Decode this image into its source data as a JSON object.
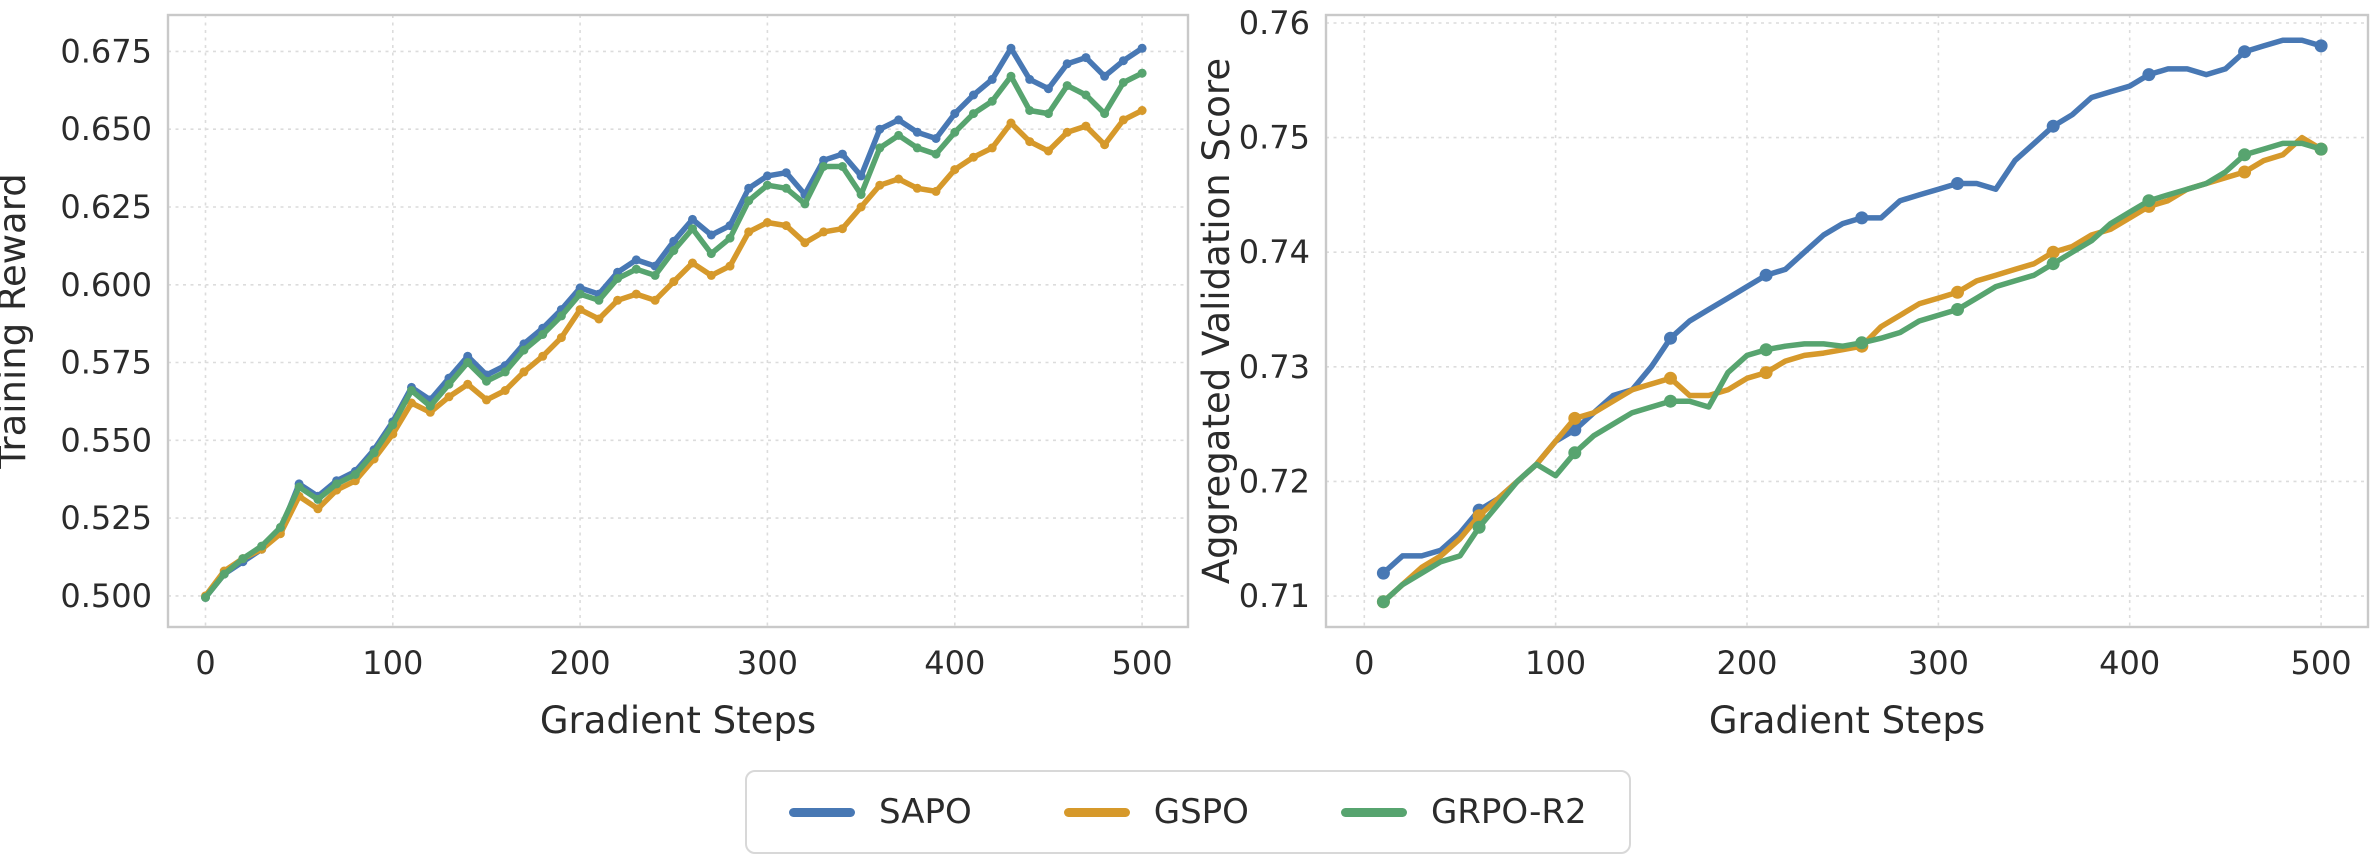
{
  "figure": {
    "background": "#ffffff"
  },
  "colors": {
    "sapo": "#4878B4",
    "gspo": "#D6992B",
    "grpo_r2": "#57A46F",
    "grid": "#dcdcdc",
    "spine": "#c9c9c9",
    "text": "#2b2b2b"
  },
  "legend": {
    "position": "bottom-center",
    "items": [
      {
        "label": "SAPO",
        "color": "#4878B4"
      },
      {
        "label": "GSPO",
        "color": "#D6992B"
      },
      {
        "label": "GRPO-R2",
        "color": "#57A46F"
      }
    ]
  },
  "chart_data": [
    {
      "type": "line",
      "title": "",
      "xlabel": "Gradient Steps",
      "ylabel": "Training Reward",
      "xlim": [
        -20,
        524.5
      ],
      "ylim": [
        0.49,
        0.6867
      ],
      "xticks": [
        0,
        100,
        200,
        300,
        400,
        500
      ],
      "yticks": [
        0.5,
        0.525,
        0.55,
        0.575,
        0.6,
        0.625,
        0.65,
        0.675
      ],
      "ytick_decimals": 3,
      "grid": true,
      "line_width": 5.5,
      "marker_radius": 4.5,
      "marker_step": 10,
      "x": [
        0,
        10,
        20,
        30,
        40,
        50,
        60,
        70,
        80,
        90,
        100,
        110,
        120,
        130,
        140,
        150,
        160,
        170,
        180,
        190,
        200,
        210,
        220,
        230,
        240,
        250,
        260,
        270,
        280,
        290,
        300,
        310,
        320,
        330,
        340,
        350,
        360,
        370,
        380,
        390,
        400,
        410,
        420,
        430,
        440,
        450,
        460,
        470,
        480,
        490,
        500
      ],
      "series": [
        {
          "name": "SAPO",
          "color": "#4878B4",
          "values": [
            0.4995,
            0.507,
            0.511,
            0.515,
            0.521,
            0.536,
            0.532,
            0.537,
            0.54,
            0.547,
            0.556,
            0.567,
            0.563,
            0.57,
            0.577,
            0.571,
            0.574,
            0.581,
            0.586,
            0.592,
            0.599,
            0.597,
            0.604,
            0.608,
            0.606,
            0.614,
            0.621,
            0.616,
            0.619,
            0.631,
            0.635,
            0.636,
            0.629,
            0.64,
            0.642,
            0.635,
            0.65,
            0.653,
            0.649,
            0.647,
            0.655,
            0.661,
            0.666,
            0.676,
            0.666,
            0.663,
            0.671,
            0.673,
            0.667,
            0.672,
            0.676
          ]
        },
        {
          "name": "GSPO",
          "color": "#D6992B",
          "values": [
            0.5,
            0.508,
            0.512,
            0.515,
            0.52,
            0.532,
            0.528,
            0.534,
            0.537,
            0.544,
            0.552,
            0.562,
            0.559,
            0.564,
            0.568,
            0.563,
            0.566,
            0.572,
            0.577,
            0.583,
            0.592,
            0.589,
            0.595,
            0.597,
            0.595,
            0.601,
            0.607,
            0.603,
            0.606,
            0.617,
            0.62,
            0.619,
            0.6135,
            0.617,
            0.618,
            0.625,
            0.632,
            0.634,
            0.631,
            0.63,
            0.637,
            0.641,
            0.644,
            0.652,
            0.646,
            0.643,
            0.649,
            0.651,
            0.645,
            0.653,
            0.656
          ]
        },
        {
          "name": "GRPO-R2",
          "color": "#57A46F",
          "values": [
            0.4995,
            0.507,
            0.512,
            0.516,
            0.522,
            0.535,
            0.531,
            0.536,
            0.539,
            0.546,
            0.555,
            0.566,
            0.561,
            0.568,
            0.575,
            0.569,
            0.572,
            0.579,
            0.584,
            0.59,
            0.597,
            0.595,
            0.602,
            0.605,
            0.603,
            0.611,
            0.618,
            0.61,
            0.615,
            0.627,
            0.632,
            0.631,
            0.626,
            0.638,
            0.638,
            0.629,
            0.644,
            0.648,
            0.644,
            0.642,
            0.649,
            0.655,
            0.659,
            0.667,
            0.656,
            0.655,
            0.664,
            0.661,
            0.655,
            0.665,
            0.668
          ]
        }
      ]
    },
    {
      "type": "line",
      "title": "",
      "xlabel": "Gradient Steps",
      "ylabel": "Aggregated Validation Score",
      "xlim": [
        -20,
        524.5
      ],
      "ylim": [
        0.7073,
        0.7607
      ],
      "xticks": [
        0,
        100,
        200,
        300,
        400,
        500
      ],
      "yticks": [
        0.71,
        0.72,
        0.73,
        0.74,
        0.75,
        0.76
      ],
      "ytick_decimals": 2,
      "grid": true,
      "line_width": 5.5,
      "marker_radius": 6.5,
      "marker_step": 50,
      "x": [
        10,
        20,
        30,
        40,
        50,
        60,
        70,
        80,
        90,
        100,
        110,
        120,
        130,
        140,
        150,
        160,
        170,
        180,
        190,
        200,
        210,
        220,
        230,
        240,
        250,
        260,
        270,
        280,
        290,
        300,
        310,
        320,
        330,
        340,
        350,
        360,
        370,
        380,
        390,
        400,
        410,
        420,
        430,
        440,
        450,
        460,
        470,
        480,
        490,
        500
      ],
      "series": [
        {
          "name": "SAPO",
          "color": "#4878B4",
          "values": [
            0.712,
            0.7135,
            0.7135,
            0.714,
            0.7155,
            0.7175,
            0.7185,
            0.72,
            0.7215,
            0.7235,
            0.7245,
            0.726,
            0.7275,
            0.728,
            0.73,
            0.7325,
            0.734,
            0.735,
            0.736,
            0.737,
            0.738,
            0.7385,
            0.74,
            0.7415,
            0.7425,
            0.743,
            0.743,
            0.7445,
            0.745,
            0.7455,
            0.746,
            0.746,
            0.7455,
            0.748,
            0.7495,
            0.751,
            0.752,
            0.7535,
            0.754,
            0.7545,
            0.7555,
            0.756,
            0.756,
            0.7555,
            0.756,
            0.7575,
            0.758,
            0.7585,
            0.7585,
            0.758
          ]
        },
        {
          "name": "GSPO",
          "color": "#D6992B",
          "values": [
            0.7095,
            0.711,
            0.7125,
            0.7135,
            0.715,
            0.717,
            0.7185,
            0.72,
            0.7215,
            0.7235,
            0.7255,
            0.726,
            0.727,
            0.728,
            0.7285,
            0.729,
            0.7275,
            0.7275,
            0.728,
            0.729,
            0.7295,
            0.7305,
            0.731,
            0.7312,
            0.7315,
            0.7318,
            0.7335,
            0.7345,
            0.7355,
            0.736,
            0.7365,
            0.7375,
            0.738,
            0.7385,
            0.739,
            0.74,
            0.7405,
            0.7415,
            0.742,
            0.743,
            0.744,
            0.7445,
            0.7455,
            0.746,
            0.7465,
            0.747,
            0.748,
            0.7485,
            0.75,
            0.749
          ]
        },
        {
          "name": "GRPO-R2",
          "color": "#57A46F",
          "values": [
            0.7095,
            0.711,
            0.712,
            0.713,
            0.7135,
            0.716,
            0.718,
            0.72,
            0.7215,
            0.7205,
            0.7225,
            0.724,
            0.725,
            0.726,
            0.7265,
            0.727,
            0.727,
            0.7265,
            0.7295,
            0.731,
            0.7315,
            0.7318,
            0.732,
            0.732,
            0.7318,
            0.7321,
            0.7325,
            0.733,
            0.734,
            0.7345,
            0.735,
            0.736,
            0.737,
            0.7375,
            0.738,
            0.739,
            0.74,
            0.741,
            0.7425,
            0.7435,
            0.7445,
            0.745,
            0.7455,
            0.746,
            0.747,
            0.7485,
            0.749,
            0.7495,
            0.7495,
            0.749
          ]
        }
      ]
    }
  ]
}
